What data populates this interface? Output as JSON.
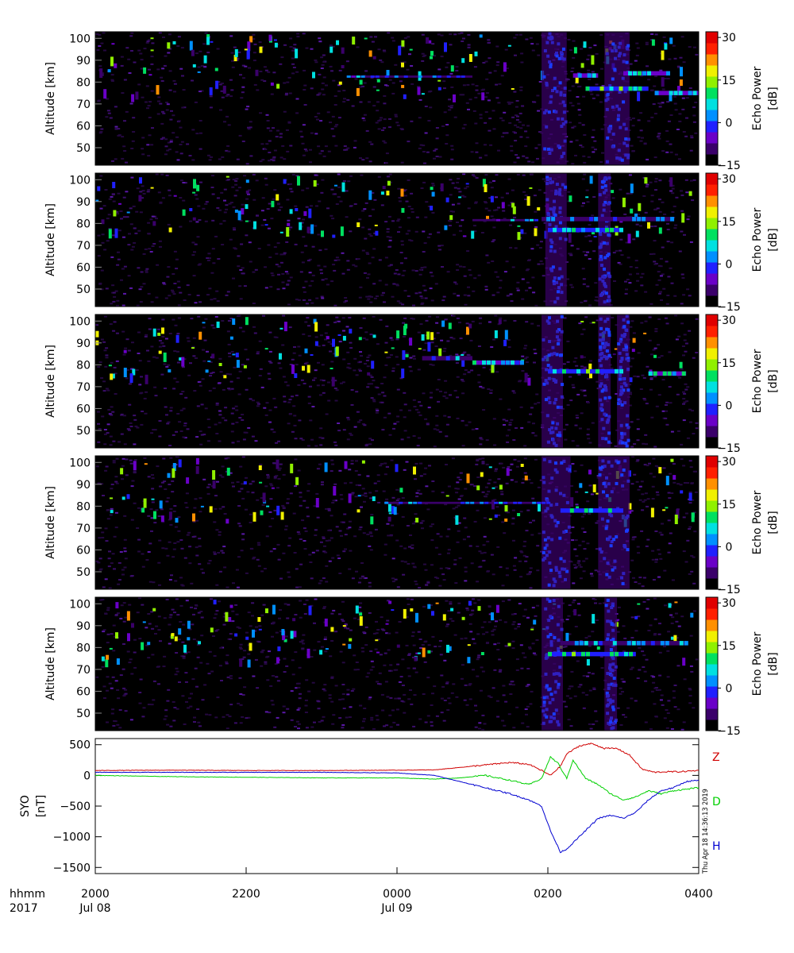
{
  "timestamp": "Thu Apr 18 14:36:13 2019",
  "time_axis": {
    "row1_label": "hhmm",
    "row2_label": "2017",
    "ticks": [
      {
        "t": 0,
        "hhmm": "2000",
        "date": "Jul 08"
      },
      {
        "t": 120,
        "hhmm": "2200",
        "date": ""
      },
      {
        "t": 240,
        "hhmm": "0000",
        "date": "Jul 09"
      },
      {
        "t": 360,
        "hhmm": "0200",
        "date": ""
      },
      {
        "t": 480,
        "hhmm": "0400",
        "date": ""
      }
    ]
  },
  "colorbar": {
    "label_line1": "Echo Power",
    "label_line2": "[dB]",
    "ticks": [
      "30",
      "15",
      "0",
      "-15"
    ],
    "range": [
      -15,
      32
    ],
    "colors": [
      "#000000",
      "#3a006a",
      "#6a00c8",
      "#2020ff",
      "#0090ff",
      "#00e0e0",
      "#00e060",
      "#90f000",
      "#f0f000",
      "#ff9000",
      "#ff2000",
      "#e00000"
    ]
  },
  "chart_data": [
    {
      "type": "heatmap",
      "panel": 1,
      "ylabel": "Altitude [km]",
      "y_ticks": [
        "100",
        "90",
        "80",
        "70",
        "60",
        "50"
      ],
      "ylim": [
        42,
        103
      ],
      "xlim": [
        0,
        480
      ],
      "layers": [
        {
          "t0": 380,
          "t1": 400,
          "alt0": 82,
          "alt1": 84,
          "db": 2
        },
        {
          "t0": 420,
          "t1": 455,
          "alt0": 83,
          "alt1": 85,
          "db": 1
        },
        {
          "t0": 390,
          "t1": 440,
          "alt0": 76,
          "alt1": 78,
          "db": 5
        },
        {
          "t0": 445,
          "t1": 480,
          "alt0": 74,
          "alt1": 76,
          "db": 2
        },
        {
          "t0": 200,
          "t1": 300,
          "alt0": 82,
          "alt1": 83,
          "db": -5
        }
      ],
      "disturbance_columns": [
        {
          "t0": 355,
          "t1": 375,
          "db": -10
        },
        {
          "t0": 405,
          "t1": 425,
          "db": -10
        }
      ]
    },
    {
      "type": "heatmap",
      "panel": 2,
      "ylabel": "Altitude [km]",
      "y_ticks": [
        "100",
        "90",
        "80",
        "70",
        "60",
        "50"
      ],
      "ylim": [
        42,
        103
      ],
      "xlim": [
        0,
        480
      ],
      "layers": [
        {
          "t0": 300,
          "t1": 350,
          "alt0": 81,
          "alt1": 82,
          "db": -4
        },
        {
          "t0": 355,
          "t1": 460,
          "alt0": 81,
          "alt1": 83,
          "db": -2
        },
        {
          "t0": 360,
          "t1": 420,
          "alt0": 76,
          "alt1": 78,
          "db": 3
        }
      ],
      "disturbance_columns": [
        {
          "t0": 358,
          "t1": 375,
          "db": -10
        },
        {
          "t0": 400,
          "t1": 410,
          "db": -11
        }
      ]
    },
    {
      "type": "heatmap",
      "panel": 3,
      "ylabel": "Altitude [km]",
      "y_ticks": [
        "100",
        "90",
        "80",
        "70",
        "60",
        "50"
      ],
      "ylim": [
        42,
        103
      ],
      "xlim": [
        0,
        480
      ],
      "layers": [
        {
          "t0": 260,
          "t1": 300,
          "alt0": 82,
          "alt1": 84,
          "db": -2
        },
        {
          "t0": 300,
          "t1": 340,
          "alt0": 80,
          "alt1": 82,
          "db": 0
        },
        {
          "t0": 360,
          "t1": 420,
          "alt0": 76,
          "alt1": 78,
          "db": 3
        },
        {
          "t0": 440,
          "t1": 470,
          "alt0": 75,
          "alt1": 77,
          "db": 2
        }
      ],
      "disturbance_columns": [
        {
          "t0": 355,
          "t1": 372,
          "db": -10
        },
        {
          "t0": 400,
          "t1": 410,
          "db": -11
        },
        {
          "t0": 415,
          "t1": 425,
          "db": -11
        }
      ]
    },
    {
      "type": "heatmap",
      "panel": 4,
      "ylabel": "Altitude [km]",
      "y_ticks": [
        "100",
        "90",
        "80",
        "70",
        "60",
        "50"
      ],
      "ylim": [
        42,
        103
      ],
      "xlim": [
        0,
        480
      ],
      "layers": [
        {
          "t0": 230,
          "t1": 360,
          "alt0": 81,
          "alt1": 82,
          "db": -4
        },
        {
          "t0": 370,
          "t1": 420,
          "alt0": 77,
          "alt1": 79,
          "db": 3
        }
      ],
      "disturbance_columns": [
        {
          "t0": 355,
          "t1": 378,
          "db": -10
        },
        {
          "t0": 400,
          "t1": 425,
          "db": -10
        }
      ]
    },
    {
      "type": "heatmap",
      "panel": 5,
      "ylabel": "Altitude [km]",
      "y_ticks": [
        "100",
        "90",
        "80",
        "70",
        "60",
        "50"
      ],
      "ylim": [
        42,
        103
      ],
      "xlim": [
        0,
        480
      ],
      "layers": [
        {
          "t0": 370,
          "t1": 470,
          "alt0": 81,
          "alt1": 83,
          "db": -2
        },
        {
          "t0": 360,
          "t1": 430,
          "alt0": 76,
          "alt1": 78,
          "db": 4
        }
      ],
      "disturbance_columns": [
        {
          "t0": 355,
          "t1": 372,
          "db": -10
        },
        {
          "t0": 405,
          "t1": 415,
          "db": -11
        }
      ]
    },
    {
      "type": "line",
      "panel": 6,
      "ylabel_line1": "SYO",
      "ylabel_line2": "[nT]",
      "y_ticks": [
        500,
        0,
        -500,
        -1000,
        -1500
      ],
      "ylim": [
        -1600,
        600
      ],
      "xlim": [
        0,
        480
      ],
      "series": [
        {
          "name": "Z",
          "color": "#d00000",
          "x": [
            0,
            60,
            120,
            180,
            240,
            270,
            300,
            330,
            345,
            355,
            362,
            370,
            375,
            385,
            395,
            405,
            415,
            425,
            435,
            445,
            455,
            465,
            480
          ],
          "y": [
            80,
            85,
            80,
            80,
            85,
            90,
            150,
            210,
            180,
            80,
            0,
            150,
            350,
            480,
            520,
            440,
            440,
            330,
            100,
            50,
            60,
            60,
            80
          ]
        },
        {
          "name": "D",
          "color": "#00d000",
          "x": [
            0,
            60,
            120,
            180,
            240,
            270,
            290,
            310,
            330,
            345,
            355,
            362,
            368,
            375,
            380,
            390,
            400,
            410,
            420,
            430,
            440,
            450,
            460,
            480
          ],
          "y": [
            0,
            -20,
            -30,
            -40,
            -40,
            -60,
            -40,
            0,
            -80,
            -150,
            -50,
            300,
            200,
            -50,
            250,
            -50,
            -150,
            -300,
            -400,
            -350,
            -250,
            -300,
            -250,
            -200
          ]
        },
        {
          "name": "H",
          "color": "#0000d0",
          "x": [
            0,
            60,
            120,
            180,
            240,
            270,
            290,
            310,
            330,
            345,
            355,
            362,
            370,
            375,
            380,
            390,
            400,
            410,
            420,
            430,
            440,
            450,
            460,
            470,
            480
          ],
          "y": [
            50,
            50,
            50,
            50,
            40,
            0,
            -100,
            -200,
            -300,
            -400,
            -500,
            -900,
            -1250,
            -1200,
            -1100,
            -900,
            -700,
            -650,
            -700,
            -600,
            -400,
            -250,
            -200,
            -100,
            -80
          ]
        }
      ]
    }
  ]
}
